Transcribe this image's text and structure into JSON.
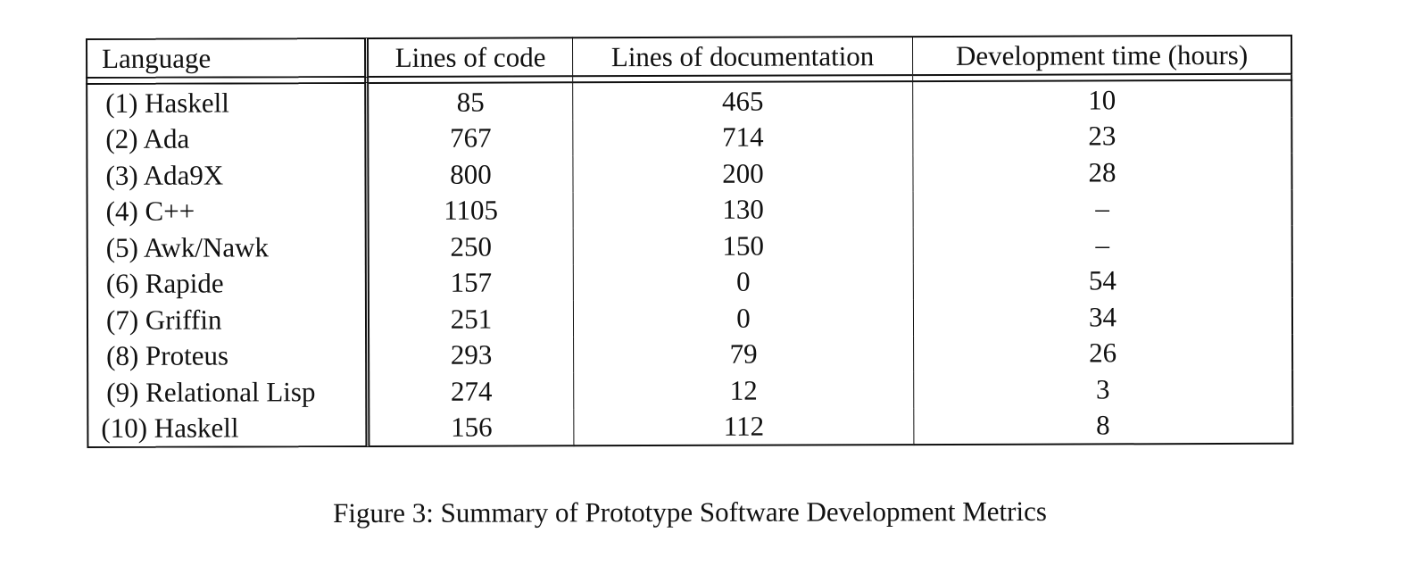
{
  "table": {
    "headers": {
      "language": "Language",
      "lines_of_code": "Lines of code",
      "lines_of_documentation": "Lines of documentation",
      "development_time": "Development time (hours)"
    },
    "rows": [
      {
        "language": "(1) Haskell",
        "lines_of_code": "85",
        "lines_of_documentation": "465",
        "development_time": "10"
      },
      {
        "language": "(2) Ada",
        "lines_of_code": "767",
        "lines_of_documentation": "714",
        "development_time": "23"
      },
      {
        "language": "(3) Ada9X",
        "lines_of_code": "800",
        "lines_of_documentation": "200",
        "development_time": "28"
      },
      {
        "language": "(4) C++",
        "lines_of_code": "1105",
        "lines_of_documentation": "130",
        "development_time": "–"
      },
      {
        "language": "(5) Awk/Nawk",
        "lines_of_code": "250",
        "lines_of_documentation": "150",
        "development_time": "–"
      },
      {
        "language": "(6) Rapide",
        "lines_of_code": "157",
        "lines_of_documentation": "0",
        "development_time": "54"
      },
      {
        "language": "(7) Griffin",
        "lines_of_code": "251",
        "lines_of_documentation": "0",
        "development_time": "34"
      },
      {
        "language": "(8) Proteus",
        "lines_of_code": "293",
        "lines_of_documentation": "79",
        "development_time": "26"
      },
      {
        "language": "(9) Relational Lisp",
        "lines_of_code": "274",
        "lines_of_documentation": "12",
        "development_time": "3"
      },
      {
        "language": "(10) Haskell",
        "lines_of_code": "156",
        "lines_of_documentation": "112",
        "development_time": "8"
      }
    ]
  },
  "caption": "Figure 3: Summary of Prototype Software Development Metrics"
}
